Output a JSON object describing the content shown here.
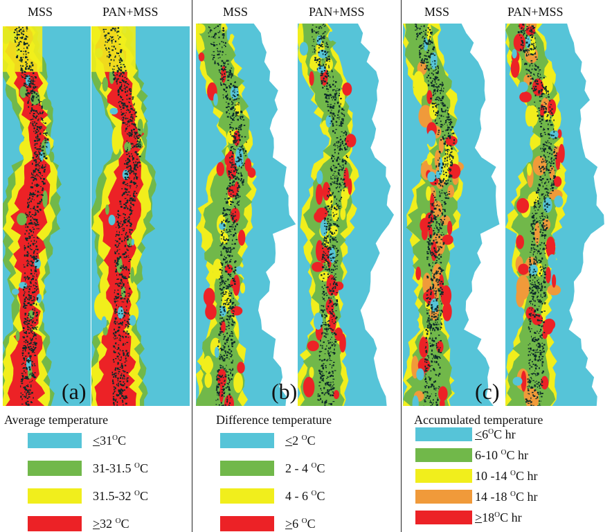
{
  "colors": {
    "cyan": "#56c4d8",
    "green": "#71b84a",
    "yellow": "#f1ee1c",
    "orange": "#f09a3a",
    "red": "#ec2226",
    "vegetation": "#0c2a2a"
  },
  "panels": [
    {
      "id": "a",
      "map_labels": [
        "MSS",
        "PAN+MSS"
      ],
      "panel_letter": "(a)",
      "legend_title": "Average temperature",
      "legend": [
        {
          "sym": "<",
          "value": "31",
          "unit": "C",
          "suffix": "",
          "color": "cyan"
        },
        {
          "sym": "",
          "value": "31-31.5 ",
          "unit": "C",
          "suffix": "",
          "color": "green"
        },
        {
          "sym": "",
          "value": "31.5-32 ",
          "unit": "C",
          "suffix": "",
          "color": "yellow"
        },
        {
          "sym": ">",
          "value": "32  ",
          "unit": "C",
          "suffix": "",
          "color": "red"
        }
      ]
    },
    {
      "id": "b",
      "map_labels": [
        "MSS",
        "PAN+MSS"
      ],
      "panel_letter": "(b)",
      "legend_title": "Difference temperature",
      "legend": [
        {
          "sym": "<",
          "value": "2 ",
          "unit": "C",
          "suffix": "",
          "color": "cyan"
        },
        {
          "sym": "",
          "value": "2 - 4 ",
          "unit": "C",
          "suffix": "",
          "color": "green"
        },
        {
          "sym": "",
          "value": "4 - 6 ",
          "unit": "C",
          "suffix": "",
          "color": "yellow"
        },
        {
          "sym": ">",
          "value": "6 ",
          "unit": "C",
          "suffix": "",
          "color": "red"
        }
      ]
    },
    {
      "id": "c",
      "map_labels": [
        "MSS",
        "PAN+MSS"
      ],
      "panel_letter": "(c)",
      "legend_title": "Accumulated temperature",
      "legend": [
        {
          "sym": "<",
          "value": "6",
          "unit": "C",
          "suffix": " hr",
          "color": "cyan"
        },
        {
          "sym": "",
          "value": "6-10 ",
          "unit": "C",
          "suffix": " hr",
          "color": "green"
        },
        {
          "sym": "",
          "value": "10 -14 ",
          "unit": "C",
          "suffix": " hr",
          "color": "yellow"
        },
        {
          "sym": "",
          "value": "14 -18 ",
          "unit": "C",
          "suffix": " hr",
          "color": "orange"
        },
        {
          "sym": ">",
          "value": "18",
          "unit": "C",
          "suffix": " hr",
          "color": "red"
        }
      ]
    }
  ],
  "degree_symbol": "O"
}
